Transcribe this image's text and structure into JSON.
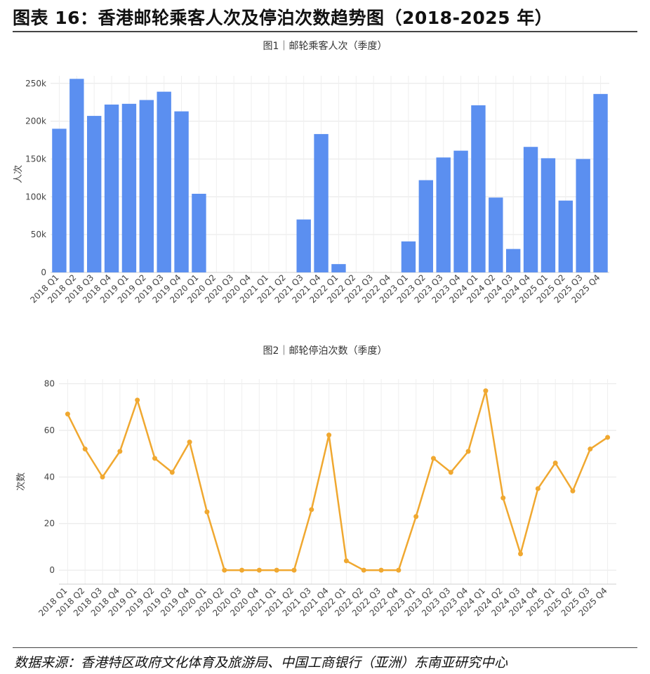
{
  "figure_title": "图表 16：香港邮轮乘客人次及停泊次数趋势图（2018-2025 年）",
  "source": "数据来源：香港特区政府文化体育及旅游局、中国工商银行（亚洲）东南亚研究中心",
  "chart_data": [
    {
      "type": "bar",
      "title": "图1｜邮轮乘客人次（季度）",
      "xlabel": "",
      "ylabel": "人次",
      "ylim": [
        0,
        260000
      ],
      "yticks": [
        0,
        50000,
        100000,
        150000,
        200000,
        250000
      ],
      "ytick_labels": [
        "0",
        "50k",
        "100k",
        "150k",
        "200k",
        "250k"
      ],
      "grid": true,
      "color": "#5b8ff0",
      "categories": [
        "2018 Q1",
        "2018 Q2",
        "2018 Q3",
        "2018 Q4",
        "2019 Q1",
        "2019 Q2",
        "2019 Q3",
        "2019 Q4",
        "2020 Q1",
        "2020 Q2",
        "2020 Q3",
        "2020 Q4",
        "2021 Q1",
        "2021 Q2",
        "2021 Q3",
        "2021 Q4",
        "2022 Q1",
        "2022 Q2",
        "2022 Q3",
        "2022 Q4",
        "2023 Q1",
        "2023 Q2",
        "2023 Q3",
        "2023 Q4",
        "2024 Q1",
        "2024 Q2",
        "2024 Q3",
        "2024 Q4",
        "2025 Q1",
        "2025 Q2",
        "2025 Q3",
        "2025 Q4"
      ],
      "values": [
        190000,
        256000,
        207000,
        222000,
        223000,
        228000,
        239000,
        213000,
        104000,
        0,
        0,
        0,
        0,
        0,
        70000,
        183000,
        11000,
        0,
        0,
        0,
        41000,
        122000,
        152000,
        161000,
        221000,
        99000,
        31000,
        166000,
        151000,
        95000,
        150000,
        236000
      ]
    },
    {
      "type": "line",
      "title": "图2｜邮轮停泊次数（季度）",
      "xlabel": "",
      "ylabel": "次数",
      "ylim": [
        -6,
        82
      ],
      "yticks": [
        0,
        20,
        40,
        60,
        80
      ],
      "ytick_labels": [
        "0",
        "20",
        "40",
        "60",
        "80"
      ],
      "grid": true,
      "color": "#f0a830",
      "categories": [
        "2018 Q1",
        "2018 Q2",
        "2018 Q3",
        "2018 Q4",
        "2019 Q1",
        "2019 Q2",
        "2019 Q3",
        "2019 Q4",
        "2020 Q1",
        "2020 Q2",
        "2020 Q3",
        "2020 Q4",
        "2021 Q1",
        "2021 Q2",
        "2021 Q3",
        "2021 Q4",
        "2022 Q1",
        "2022 Q2",
        "2022 Q3",
        "2022 Q4",
        "2023 Q1",
        "2023 Q2",
        "2023 Q3",
        "2023 Q4",
        "2024 Q1",
        "2024 Q2",
        "2024 Q3",
        "2024 Q4",
        "2025 Q1",
        "2025 Q2",
        "2025 Q3",
        "2025 Q4"
      ],
      "values": [
        67,
        52,
        40,
        51,
        73,
        48,
        42,
        55,
        25,
        0,
        0,
        0,
        0,
        0,
        26,
        58,
        4,
        0,
        0,
        0,
        23,
        48,
        42,
        51,
        77,
        31,
        7,
        35,
        46,
        34,
        52,
        57
      ]
    }
  ]
}
